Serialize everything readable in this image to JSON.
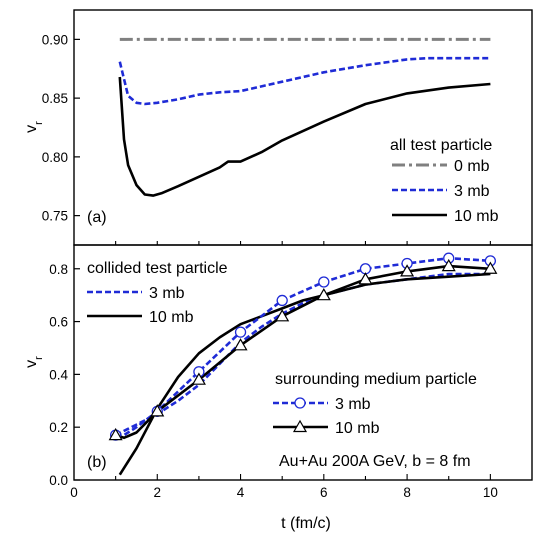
{
  "chart_data": [
    {
      "type": "line",
      "panel_label": "(a)",
      "ylabel": "v",
      "ylabel_subscript": "r",
      "xlim": [
        0,
        11
      ],
      "ylim": [
        0.725,
        0.925
      ],
      "yticks": [
        0.75,
        0.8,
        0.85,
        0.9
      ],
      "ytick_labels": [
        "0.75",
        "0.80",
        "0.85",
        "0.90"
      ],
      "legend_title": "all test particle",
      "legend_position": "right",
      "series": [
        {
          "name": "0 mb",
          "style": "dashdot",
          "color": "#808080",
          "x": [
            1.1,
            10
          ],
          "y": [
            0.9,
            0.9
          ]
        },
        {
          "name": "3 mb",
          "style": "dash",
          "color": "#1f2bd6",
          "x": [
            1.1,
            1.3,
            1.5,
            1.7,
            2.0,
            2.5,
            3.0,
            3.5,
            4.0,
            5.0,
            6.0,
            7.0,
            8.0,
            8.5,
            9.0,
            10.0
          ],
          "y": [
            0.881,
            0.852,
            0.846,
            0.845,
            0.846,
            0.849,
            0.853,
            0.855,
            0.856,
            0.864,
            0.872,
            0.878,
            0.883,
            0.884,
            0.884,
            0.884
          ]
        },
        {
          "name": "10 mb",
          "style": "solid",
          "color": "#000000",
          "x": [
            1.1,
            1.2,
            1.3,
            1.5,
            1.7,
            1.9,
            2.1,
            2.5,
            3.0,
            3.5,
            3.7,
            4.0,
            4.5,
            5.0,
            6.0,
            7.0,
            8.0,
            9.0,
            10.0
          ],
          "y": [
            0.868,
            0.815,
            0.793,
            0.776,
            0.768,
            0.767,
            0.769,
            0.775,
            0.783,
            0.791,
            0.796,
            0.796,
            0.804,
            0.814,
            0.83,
            0.845,
            0.854,
            0.859,
            0.862
          ]
        }
      ]
    },
    {
      "type": "line",
      "panel_label": "(b)",
      "annotation": "Au+Au 200A GeV, b = 8 fm",
      "xlabel": "t (fm/c)",
      "ylabel": "v",
      "ylabel_subscript": "r",
      "xlim": [
        0,
        11
      ],
      "ylim": [
        0,
        0.89
      ],
      "xticks": [
        0,
        2,
        4,
        6,
        8,
        10
      ],
      "xtick_labels": [
        "0",
        "2",
        "4",
        "6",
        "8",
        "10"
      ],
      "yticks": [
        0.0,
        0.2,
        0.4,
        0.6,
        0.8
      ],
      "ytick_labels": [
        "0.0",
        "0.2",
        "0.4",
        "0.6",
        "0.8"
      ],
      "legends": [
        {
          "title": "collided test particle",
          "position": "top-left",
          "entries": [
            {
              "name": "3 mb",
              "style": "dash",
              "marker": "none",
              "color": "#1f2bd6"
            },
            {
              "name": "10 mb",
              "style": "solid",
              "marker": "none",
              "color": "#000000"
            }
          ]
        },
        {
          "title": "surrounding medium particle",
          "position": "right",
          "entries": [
            {
              "name": "3 mb",
              "style": "dash",
              "marker": "circle",
              "color": "#1f2bd6"
            },
            {
              "name": "10 mb",
              "style": "solid",
              "marker": "triangle",
              "color": "#000000"
            }
          ]
        }
      ],
      "series": [
        {
          "name": "3 mb",
          "group": "collided test particle",
          "style": "dash",
          "marker": "none",
          "color": "#1f2bd6",
          "x": [
            1.0,
            1.5,
            2.0,
            2.5,
            3.0,
            3.5,
            4.0,
            4.5,
            5.0,
            5.5,
            6.0,
            6.5,
            7.0,
            8.0,
            9.0,
            10.0
          ],
          "y": [
            0.17,
            0.21,
            0.25,
            0.3,
            0.36,
            0.44,
            0.52,
            0.58,
            0.63,
            0.67,
            0.7,
            0.72,
            0.74,
            0.76,
            0.78,
            0.78
          ]
        },
        {
          "name": "10 mb",
          "group": "collided test particle",
          "style": "solid",
          "marker": "none",
          "color": "#000000",
          "x": [
            1.1,
            1.5,
            2.0,
            2.5,
            3.0,
            3.5,
            4.0,
            4.5,
            5.0,
            5.5,
            6.0,
            7.0,
            8.0,
            9.0,
            10.0
          ],
          "y": [
            0.02,
            0.12,
            0.27,
            0.39,
            0.48,
            0.54,
            0.59,
            0.62,
            0.65,
            0.68,
            0.7,
            0.74,
            0.76,
            0.77,
            0.78
          ]
        },
        {
          "name": "3 mb",
          "group": "surrounding medium particle",
          "style": "dash",
          "marker": "circle",
          "color": "#1f2bd6",
          "x": [
            1.0,
            1.2,
            1.5,
            2.0,
            3.0,
            4.0,
            5.0,
            6.0,
            7.0,
            8.0,
            9.0,
            10.0
          ],
          "y": [
            0.17,
            0.17,
            0.2,
            0.26,
            0.41,
            0.56,
            0.68,
            0.75,
            0.8,
            0.82,
            0.84,
            0.83
          ]
        },
        {
          "name": "10 mb",
          "group": "surrounding medium particle",
          "style": "solid",
          "marker": "triangle",
          "color": "#000000",
          "x": [
            1.0,
            1.2,
            1.5,
            2.0,
            3.0,
            4.0,
            5.0,
            6.0,
            7.0,
            8.0,
            9.0,
            10.0
          ],
          "y": [
            0.17,
            0.16,
            0.18,
            0.26,
            0.38,
            0.51,
            0.62,
            0.7,
            0.76,
            0.79,
            0.81,
            0.8
          ]
        }
      ]
    }
  ]
}
